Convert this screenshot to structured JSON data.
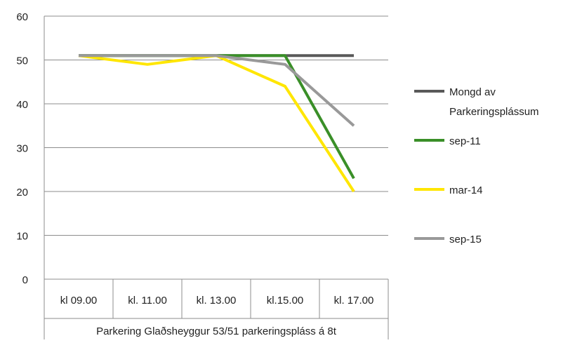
{
  "chart_data": {
    "type": "line",
    "title": "",
    "xlabel": "",
    "ylabel": "",
    "ylim": [
      0,
      60
    ],
    "y_ticks": [
      0,
      10,
      20,
      30,
      40,
      50,
      60
    ],
    "grid": true,
    "legend_position": "right",
    "categories": [
      "kl 09.00",
      "kl. 11.00",
      "kl. 13.00",
      "kl.15.00",
      "kl. 17.00"
    ],
    "category_group_label": "Parkering Glaðsheyggur 53/51 parkeringspláss á 8t",
    "series": [
      {
        "name": "Mongd av Parkeringsplássum",
        "legend_lines": [
          "Mongd av",
          "Parkeringsplássum"
        ],
        "color": "#595959",
        "values": [
          51,
          51,
          51,
          51,
          51
        ]
      },
      {
        "name": "sep-11",
        "legend_lines": [
          "sep-11"
        ],
        "color": "#3a8f28",
        "values": [
          51,
          51,
          51,
          51,
          23
        ]
      },
      {
        "name": "mar-14",
        "legend_lines": [
          "mar-14"
        ],
        "color": "#ffe600",
        "values": [
          51,
          49,
          51,
          44,
          20
        ]
      },
      {
        "name": "sep-15",
        "legend_lines": [
          "sep-15"
        ],
        "color": "#999999",
        "values": [
          51,
          51,
          51,
          49,
          35
        ]
      }
    ]
  }
}
